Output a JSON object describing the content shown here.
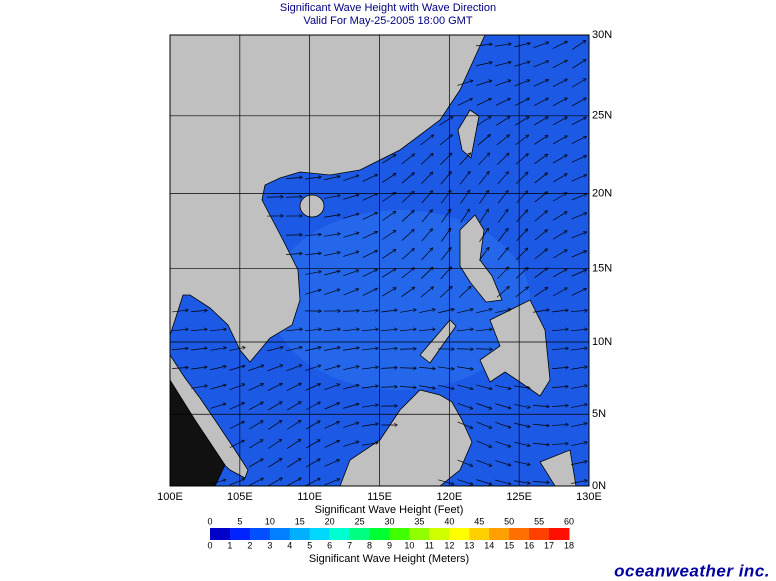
{
  "header": {
    "title": "Significant Wave Height with Wave Direction",
    "subtitle": "Valid For May-25-2005 18:00 GMT"
  },
  "map": {
    "lon_ticks": [
      {
        "value": 100,
        "label": "100E"
      },
      {
        "value": 105,
        "label": "105E"
      },
      {
        "value": 110,
        "label": "110E"
      },
      {
        "value": 115,
        "label": "115E"
      },
      {
        "value": 120,
        "label": "120E"
      },
      {
        "value": 125,
        "label": "125E"
      },
      {
        "value": 130,
        "label": "130E"
      }
    ],
    "lat_ticks": [
      {
        "value": 30,
        "label": "30N"
      },
      {
        "value": 25,
        "label": "25N"
      },
      {
        "value": 20,
        "label": "20N"
      },
      {
        "value": 15,
        "label": "15N"
      },
      {
        "value": 10,
        "label": "10N"
      },
      {
        "value": 5,
        "label": "5N"
      },
      {
        "value": 0,
        "label": "0N"
      }
    ]
  },
  "colorbar": {
    "feet_title": "Significant Wave Height (Feet)",
    "feet_ticks": [
      0,
      5,
      10,
      15,
      20,
      25,
      30,
      35,
      40,
      45,
      50,
      55,
      60
    ],
    "meters_title": "Significant Wave Height (Meters)",
    "meters_ticks": [
      0,
      1,
      2,
      3,
      4,
      5,
      6,
      7,
      8,
      9,
      10,
      11,
      12,
      13,
      14,
      15,
      16,
      17,
      18
    ]
  },
  "logo": "oceanweather inc."
}
